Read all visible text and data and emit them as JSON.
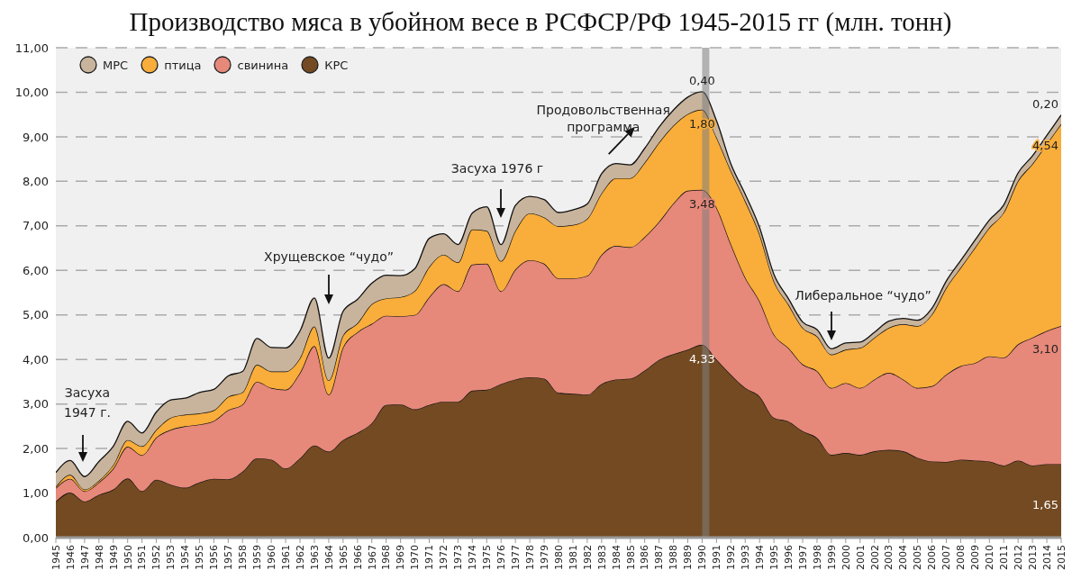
{
  "chart_data": {
    "type": "area",
    "stacked": true,
    "title": "Производство мяса в убойном весе в РСФСР/РФ 1945-2015 гг (млн. тонн)",
    "x": [
      1945,
      1946,
      1947,
      1948,
      1949,
      1950,
      1951,
      1952,
      1953,
      1954,
      1955,
      1956,
      1957,
      1958,
      1959,
      1960,
      1961,
      1962,
      1963,
      1964,
      1965,
      1966,
      1967,
      1968,
      1969,
      1970,
      1971,
      1972,
      1973,
      1974,
      1975,
      1976,
      1977,
      1978,
      1979,
      1980,
      1981,
      1982,
      1983,
      1984,
      1985,
      1986,
      1987,
      1988,
      1989,
      1990,
      1991,
      1992,
      1993,
      1994,
      1995,
      1996,
      1997,
      1998,
      1999,
      2000,
      2001,
      2002,
      2003,
      2004,
      2005,
      2006,
      2007,
      2008,
      2009,
      2010,
      2011,
      2012,
      2013,
      2014,
      2015
    ],
    "series": [
      {
        "name": "КРС",
        "color": "#734a22",
        "values": [
          0.81,
          1.01,
          0.81,
          0.96,
          1.08,
          1.33,
          1.04,
          1.3,
          1.19,
          1.12,
          1.24,
          1.32,
          1.31,
          1.48,
          1.78,
          1.75,
          1.55,
          1.78,
          2.07,
          1.93,
          2.19,
          2.35,
          2.57,
          2.98,
          2.99,
          2.88,
          2.98,
          3.05,
          3.05,
          3.3,
          3.32,
          3.45,
          3.55,
          3.6,
          3.57,
          3.25,
          3.23,
          3.21,
          3.45,
          3.55,
          3.57,
          3.75,
          3.99,
          4.12,
          4.22,
          4.33,
          4.0,
          3.66,
          3.36,
          3.17,
          2.69,
          2.61,
          2.39,
          2.24,
          1.86,
          1.9,
          1.86,
          1.94,
          1.97,
          1.94,
          1.79,
          1.71,
          1.7,
          1.75,
          1.73,
          1.71,
          1.62,
          1.73,
          1.62,
          1.65,
          1.65
        ],
        "value_labels": [
          null,
          null,
          null,
          null,
          null,
          null,
          null,
          null,
          null,
          null,
          null,
          null,
          null,
          null,
          null,
          null,
          null,
          null,
          null,
          null,
          null,
          null,
          null,
          null,
          null,
          null,
          null,
          null,
          null,
          null,
          null,
          null,
          null,
          null,
          null,
          null,
          null,
          null,
          null,
          null,
          null,
          null,
          null,
          null,
          null,
          "4,33",
          null,
          null,
          null,
          null,
          null,
          null,
          null,
          null,
          null,
          null,
          null,
          null,
          null,
          null,
          null,
          null,
          null,
          null,
          null,
          null,
          null,
          null,
          null,
          null,
          "1,65"
        ]
      },
      {
        "name": "свинина",
        "color": "#e6887a",
        "values": [
          0.3,
          0.31,
          0.23,
          0.28,
          0.47,
          0.71,
          0.81,
          0.95,
          1.23,
          1.38,
          1.3,
          1.3,
          1.55,
          1.51,
          1.72,
          1.61,
          1.77,
          1.92,
          2.23,
          1.28,
          2.08,
          2.26,
          2.23,
          2.0,
          1.98,
          2.12,
          2.42,
          2.64,
          2.48,
          2.83,
          2.83,
          2.08,
          2.47,
          2.63,
          2.58,
          2.57,
          2.59,
          2.67,
          2.9,
          3.0,
          2.95,
          3.0,
          3.1,
          3.38,
          3.57,
          3.48,
          3.41,
          2.93,
          2.48,
          2.14,
          1.87,
          1.65,
          1.5,
          1.5,
          1.5,
          1.57,
          1.5,
          1.61,
          1.73,
          1.61,
          1.57,
          1.69,
          1.96,
          2.1,
          2.19,
          2.36,
          2.42,
          2.61,
          2.87,
          2.99,
          3.1
        ],
        "value_labels": [
          null,
          null,
          null,
          null,
          null,
          null,
          null,
          null,
          null,
          null,
          null,
          null,
          null,
          null,
          null,
          null,
          null,
          null,
          null,
          null,
          null,
          null,
          null,
          null,
          null,
          null,
          null,
          null,
          null,
          null,
          null,
          null,
          null,
          null,
          null,
          null,
          null,
          null,
          null,
          null,
          null,
          null,
          null,
          null,
          null,
          "3,48",
          null,
          null,
          null,
          null,
          null,
          null,
          null,
          null,
          null,
          null,
          null,
          null,
          null,
          null,
          null,
          null,
          null,
          null,
          null,
          null,
          null,
          null,
          null,
          null,
          "3,10"
        ]
      },
      {
        "name": "птица",
        "color": "#f9ad3a",
        "values": [
          0.03,
          0.09,
          0.04,
          0.04,
          0.08,
          0.15,
          0.2,
          0.17,
          0.27,
          0.26,
          0.25,
          0.24,
          0.3,
          0.27,
          0.38,
          0.37,
          0.41,
          0.33,
          0.44,
          0.32,
          0.27,
          0.2,
          0.44,
          0.39,
          0.43,
          0.54,
          0.68,
          0.66,
          0.65,
          0.79,
          0.74,
          0.68,
          0.87,
          1.05,
          1.04,
          1.17,
          1.2,
          1.28,
          1.38,
          1.52,
          1.55,
          1.67,
          1.78,
          1.75,
          1.72,
          1.8,
          1.58,
          1.65,
          1.72,
          1.5,
          1.2,
          0.98,
          0.82,
          0.78,
          0.75,
          0.75,
          0.9,
          0.94,
          1.01,
          1.24,
          1.39,
          1.61,
          1.95,
          2.21,
          2.59,
          2.89,
          3.26,
          3.67,
          3.9,
          4.2,
          4.54
        ],
        "value_labels": [
          null,
          null,
          null,
          null,
          null,
          null,
          null,
          null,
          null,
          null,
          null,
          null,
          null,
          null,
          null,
          null,
          null,
          null,
          null,
          null,
          null,
          null,
          null,
          null,
          null,
          null,
          null,
          null,
          null,
          null,
          null,
          null,
          null,
          null,
          null,
          null,
          null,
          null,
          null,
          null,
          null,
          null,
          null,
          null,
          null,
          "1,80",
          null,
          null,
          null,
          null,
          null,
          null,
          null,
          null,
          null,
          null,
          null,
          null,
          null,
          null,
          null,
          null,
          null,
          null,
          null,
          null,
          null,
          null,
          null,
          null,
          "4,54"
        ]
      },
      {
        "name": "МРС",
        "color": "#c8b49c",
        "values": [
          0.32,
          0.32,
          0.29,
          0.43,
          0.42,
          0.42,
          0.3,
          0.4,
          0.4,
          0.37,
          0.47,
          0.47,
          0.47,
          0.47,
          0.59,
          0.54,
          0.53,
          0.61,
          0.64,
          0.5,
          0.54,
          0.54,
          0.47,
          0.52,
          0.48,
          0.5,
          0.64,
          0.47,
          0.4,
          0.37,
          0.54,
          0.37,
          0.57,
          0.38,
          0.4,
          0.31,
          0.34,
          0.33,
          0.44,
          0.33,
          0.3,
          0.32,
          0.35,
          0.35,
          0.38,
          0.4,
          0.37,
          0.15,
          0.15,
          0.15,
          0.15,
          0.13,
          0.13,
          0.15,
          0.13,
          0.15,
          0.13,
          0.12,
          0.15,
          0.13,
          0.13,
          0.14,
          0.15,
          0.16,
          0.17,
          0.17,
          0.17,
          0.18,
          0.18,
          0.19,
          0.2
        ],
        "value_labels": [
          null,
          null,
          null,
          null,
          null,
          null,
          null,
          null,
          null,
          null,
          null,
          null,
          null,
          null,
          null,
          null,
          null,
          null,
          null,
          null,
          null,
          null,
          null,
          null,
          null,
          null,
          null,
          null,
          null,
          null,
          null,
          null,
          null,
          null,
          null,
          null,
          null,
          null,
          null,
          null,
          null,
          null,
          null,
          null,
          null,
          "0,40",
          null,
          null,
          null,
          null,
          null,
          null,
          null,
          null,
          null,
          null,
          null,
          null,
          null,
          null,
          null,
          null,
          null,
          null,
          null,
          null,
          null,
          null,
          null,
          null,
          "0,20"
        ]
      }
    ],
    "xlim": [
      1945,
      2015
    ],
    "xticks": [
      1945,
      1946,
      1947,
      1948,
      1949,
      1950,
      1951,
      1952,
      1953,
      1954,
      1955,
      1956,
      1957,
      1958,
      1959,
      1960,
      1961,
      1962,
      1963,
      1964,
      1965,
      1966,
      1967,
      1968,
      1969,
      1970,
      1971,
      1972,
      1973,
      1974,
      1975,
      1976,
      1977,
      1978,
      1979,
      1980,
      1981,
      1982,
      1983,
      1984,
      1985,
      1986,
      1987,
      1988,
      1989,
      1990,
      1991,
      1992,
      1993,
      1994,
      1995,
      1996,
      1997,
      1998,
      1999,
      2000,
      2001,
      2002,
      2003,
      2004,
      2005,
      2006,
      2007,
      2008,
      2009,
      2010,
      2011,
      2012,
      2013,
      2014,
      2015
    ],
    "ylim": [
      0,
      11
    ],
    "yticks": [
      {
        "value": 0,
        "label": "0,00"
      },
      {
        "value": 1,
        "label": "1,00"
      },
      {
        "value": 2,
        "label": "2,00"
      },
      {
        "value": 3,
        "label": "3,00"
      },
      {
        "value": 4,
        "label": "4,00"
      },
      {
        "value": 5,
        "label": "5,00"
      },
      {
        "value": 6,
        "label": "6,00"
      },
      {
        "value": 7,
        "label": "7,00"
      },
      {
        "value": 8,
        "label": "8,00"
      },
      {
        "value": 9,
        "label": "9,00"
      },
      {
        "value": 10,
        "label": "10,00"
      },
      {
        "value": 11,
        "label": "11,00"
      }
    ],
    "grid": "y",
    "legend": "top left",
    "bands": [
      {
        "axis": "x",
        "from": 1990,
        "to": 1990.5,
        "color": "#808080"
      }
    ],
    "annotations": [
      "Засуха\n1947 г.",
      "Хрущевское “чудо”",
      "Засуха 1976 г",
      "Либеральное “чудо”",
      {
        "text": "Продовольственная\nпрограмма",
        "x": 1985,
        "y": 8.37
      }
    ]
  }
}
